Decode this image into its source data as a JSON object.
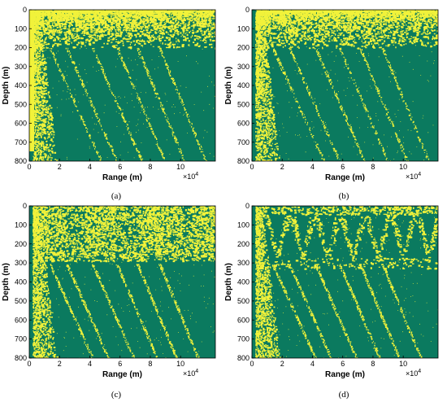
{
  "figure": {
    "colors": {
      "background": "#0b7a5f",
      "signal": "#f1f23a",
      "axis": "#000000"
    },
    "panels": [
      {
        "id": "a",
        "caption": "(a)",
        "band": "weak"
      },
      {
        "id": "b",
        "caption": "(b)",
        "band": "weak"
      },
      {
        "id": "c",
        "caption": "(c)",
        "band": "strong"
      },
      {
        "id": "d",
        "caption": "(d)",
        "band": "strong-arches"
      }
    ]
  },
  "chart_data": [
    {
      "panel": "a",
      "type": "heatmap",
      "xlabel": "Range (m)",
      "ylabel": "Depth (m)",
      "x_multiplier": "×10^4",
      "x_ticks": [
        "0",
        "2",
        "4",
        "6",
        "8",
        "10"
      ],
      "x_tick_values": [
        0,
        2,
        4,
        6,
        8,
        10
      ],
      "y_ticks": [
        "0",
        "100",
        "200",
        "300",
        "400",
        "500",
        "600",
        "700",
        "800"
      ],
      "y_tick_values": [
        0,
        100,
        200,
        300,
        400,
        500,
        600,
        700,
        800
      ],
      "xlim": [
        0,
        12.3
      ],
      "ylim": [
        800,
        0
      ],
      "caption": "(a)"
    },
    {
      "panel": "b",
      "type": "heatmap",
      "xlabel": "Range (m)",
      "ylabel": "Depth (m)",
      "x_multiplier": "×10^4",
      "x_ticks": [
        "0",
        "2",
        "4",
        "6",
        "8",
        "10"
      ],
      "x_tick_values": [
        0,
        2,
        4,
        6,
        8,
        10
      ],
      "y_ticks": [
        "0",
        "100",
        "200",
        "300",
        "400",
        "500",
        "600",
        "700",
        "800"
      ],
      "y_tick_values": [
        0,
        100,
        200,
        300,
        400,
        500,
        600,
        700,
        800
      ],
      "xlim": [
        0,
        12.3
      ],
      "ylim": [
        800,
        0
      ],
      "caption": "(b)"
    },
    {
      "panel": "c",
      "type": "heatmap",
      "xlabel": "Range (m)",
      "ylabel": "Depth (m)",
      "x_multiplier": "×10^4",
      "x_ticks": [
        "0",
        "2",
        "4",
        "6",
        "8",
        "10"
      ],
      "x_tick_values": [
        0,
        2,
        4,
        6,
        8,
        10
      ],
      "y_ticks": [
        "0",
        "100",
        "200",
        "300",
        "400",
        "500",
        "600",
        "700",
        "800"
      ],
      "y_tick_values": [
        0,
        100,
        200,
        300,
        400,
        500,
        600,
        700,
        800
      ],
      "xlim": [
        0,
        12.3
      ],
      "ylim": [
        800,
        0
      ],
      "caption": "(c)"
    },
    {
      "panel": "d",
      "type": "heatmap",
      "xlabel": "Range (m)",
      "ylabel": "Depth (m)",
      "x_multiplier": "×10^4",
      "x_ticks": [
        "0",
        "2",
        "4",
        "6",
        "8",
        "10"
      ],
      "x_tick_values": [
        0,
        2,
        4,
        6,
        8,
        10
      ],
      "y_ticks": [
        "0",
        "100",
        "200",
        "300",
        "400",
        "500",
        "600",
        "700",
        "800"
      ],
      "y_tick_values": [
        0,
        100,
        200,
        300,
        400,
        500,
        600,
        700,
        800
      ],
      "xlim": [
        0,
        12.3
      ],
      "ylim": [
        800,
        0
      ],
      "caption": "(d)"
    }
  ]
}
